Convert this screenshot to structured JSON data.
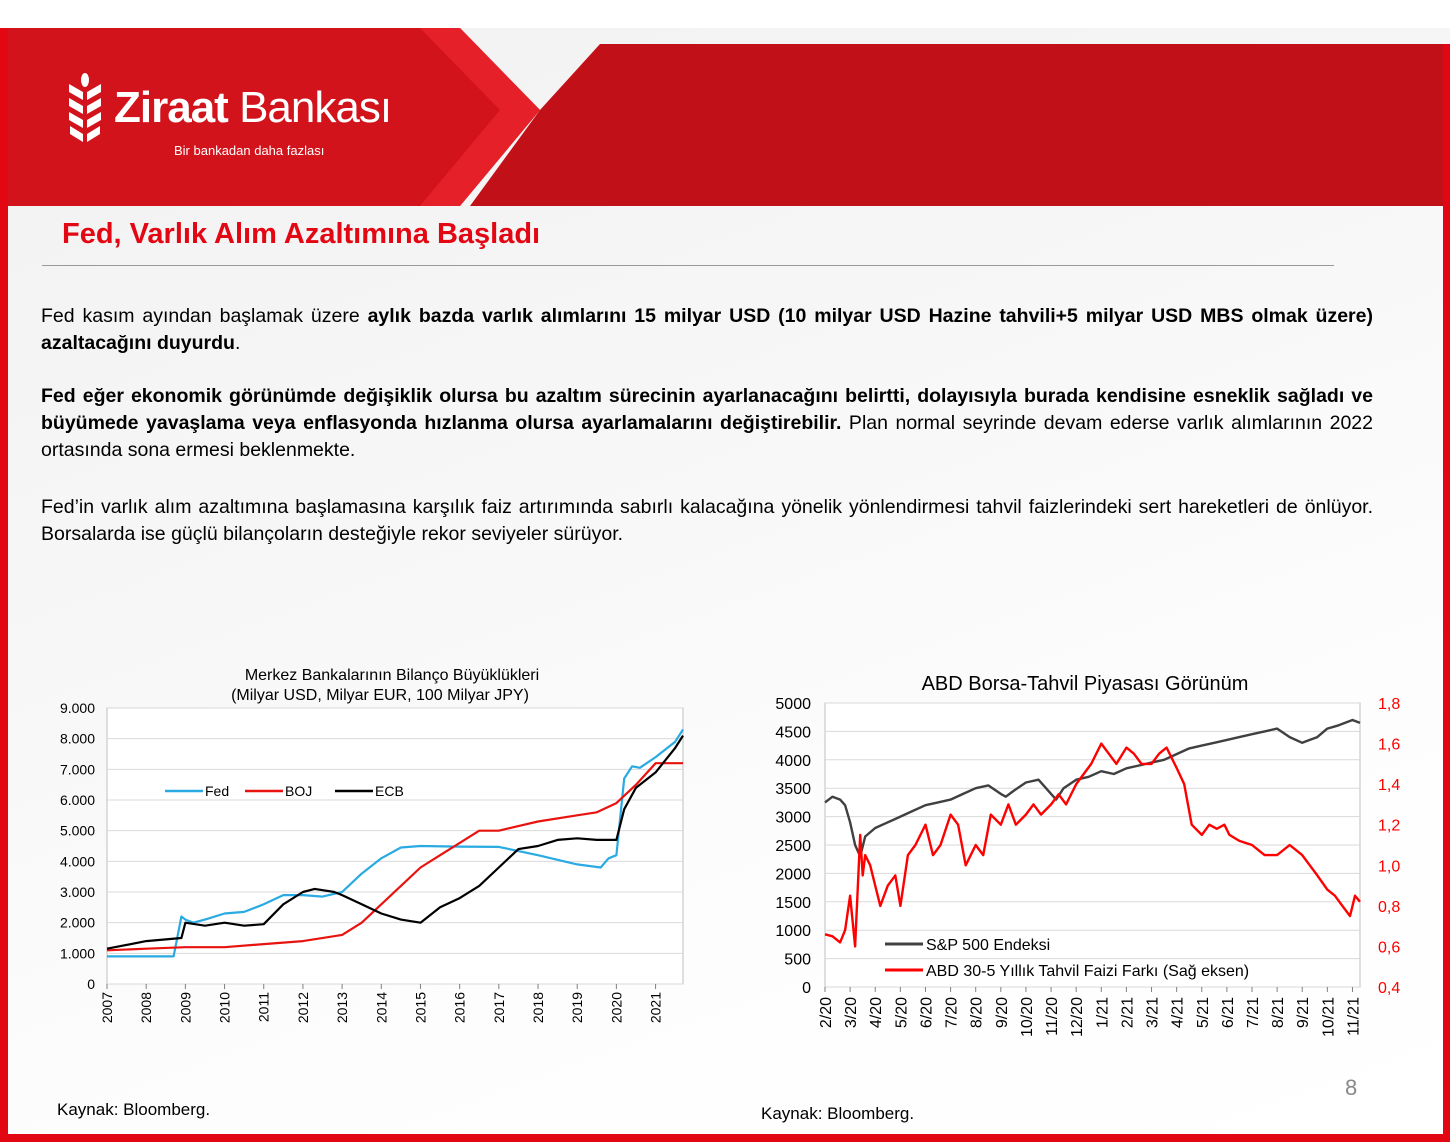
{
  "brand": {
    "name_bold": "Ziraat",
    "name_regular": "Bankası",
    "tagline": "Bir bankadan daha fazlası",
    "brand_red": "#e30613"
  },
  "slide": {
    "title": "Fed, Varlık Alım Azaltımına Başladı",
    "paragraphs": [
      {
        "pre": "Fed kasım ayından başlamak üzere ",
        "bold": "aylık bazda varlık alımlarını 15 milyar USD (10 milyar USD Hazine tahvili+5 milyar USD MBS olmak üzere) azaltacağını duyurdu",
        "post": "."
      },
      {
        "pre": "",
        "bold": "Fed eğer ekonomik görünümde değişiklik olursa bu azaltım sürecinin ayarlanacağını belirtti, dolayısıyla burada kendisine esneklik sağladı ve büyümede yavaşlama veya enflasyonda hızlanma olursa ayarlamalarını değiştirebilir.",
        "post": " Plan normal seyrinde devam ederse varlık alımlarının 2022 ortasında sona ermesi beklenmekte."
      },
      {
        "pre": "Fed’in varlık alım azaltımına başlamasına karşılık faiz artırımında sabırlı kalacağına yönelik yönlendirmesi tahvil faizlerindeki sert hareketleri de önlüyor. Borsalarda ise güçlü bilançoların desteğiyle rekor seviyeler sürüyor.",
        "bold": "",
        "post": ""
      }
    ],
    "source_left": "Kaynak: Bloomberg.",
    "source_right": "Kaynak: Bloomberg.",
    "page_number": "8"
  },
  "chart_data": [
    {
      "type": "line",
      "title": "Merkez Bankalarının Bilanço Büyüklükleri",
      "subtitle": "(Milyar USD, Milyar EUR, 100 Milyar JPY)",
      "xlabel": "",
      "ylabel": "",
      "x_ticks": [
        "2007",
        "2008",
        "2009",
        "2010",
        "2011",
        "2012",
        "2013",
        "2014",
        "2015",
        "2016",
        "2017",
        "2018",
        "2019",
        "2020",
        "2021"
      ],
      "xlim": [
        2007,
        2021.7
      ],
      "y_ticks": [
        "0",
        "1.000",
        "2.000",
        "3.000",
        "4.000",
        "5.000",
        "6.000",
        "7.000",
        "8.000",
        "9.000"
      ],
      "ylim": [
        0,
        9000
      ],
      "grid": true,
      "legend": "inside-upper-left",
      "series": [
        {
          "name": "Fed",
          "color": "#29aae2",
          "x": [
            2007,
            2008.0,
            2008.7,
            2008.9,
            2009.0,
            2009.2,
            2009.5,
            2010,
            2010.5,
            2011,
            2011.5,
            2012,
            2012.5,
            2013,
            2013.5,
            2014,
            2014.5,
            2015,
            2016,
            2017,
            2018,
            2019,
            2019.6,
            2019.8,
            2020.0,
            2020.2,
            2020.4,
            2020.6,
            2021,
            2021.5,
            2021.7
          ],
          "y": [
            900,
            900,
            900,
            2200,
            2100,
            2000,
            2100,
            2300,
            2350,
            2600,
            2900,
            2900,
            2850,
            3000,
            3600,
            4100,
            4450,
            4500,
            4480,
            4470,
            4200,
            3900,
            3800,
            4100,
            4200,
            6700,
            7100,
            7050,
            7400,
            7900,
            8300
          ]
        },
        {
          "name": "BOJ",
          "color": "#e8130f",
          "x": [
            2007,
            2008,
            2009,
            2010,
            2011,
            2012,
            2013,
            2013.5,
            2014,
            2014.5,
            2015,
            2015.5,
            2016,
            2016.5,
            2017,
            2017.5,
            2018,
            2019,
            2019.5,
            2020,
            2020.5,
            2021,
            2021.7
          ],
          "y": [
            1100,
            1150,
            1200,
            1200,
            1300,
            1400,
            1600,
            2000,
            2600,
            3200,
            3800,
            4200,
            4600,
            5000,
            5000,
            5150,
            5300,
            5500,
            5600,
            5900,
            6500,
            7200,
            7200
          ]
        },
        {
          "name": "ECB",
          "color": "#000000",
          "x": [
            2007,
            2008,
            2008.9,
            2009,
            2009.5,
            2010,
            2010.5,
            2011,
            2011.5,
            2012,
            2012.3,
            2012.8,
            2013,
            2013.5,
            2014,
            2014.5,
            2015,
            2015.5,
            2016,
            2016.5,
            2017,
            2017.5,
            2018,
            2018.5,
            2019,
            2019.5,
            2020,
            2020.2,
            2020.5,
            2021,
            2021.5,
            2021.7
          ],
          "y": [
            1150,
            1400,
            1500,
            2000,
            1900,
            2000,
            1900,
            1950,
            2600,
            3000,
            3100,
            3000,
            2900,
            2600,
            2300,
            2100,
            2000,
            2500,
            2800,
            3200,
            3800,
            4400,
            4500,
            4700,
            4750,
            4700,
            4700,
            5700,
            6400,
            6900,
            7700,
            8100
          ]
        }
      ]
    },
    {
      "type": "line",
      "title": "ABD Borsa-Tahvil Piyasası Görünüm",
      "xlabel": "",
      "ylabel": "",
      "x_ticks": [
        "2/20",
        "3/20",
        "4/20",
        "5/20",
        "6/20",
        "7/20",
        "8/20",
        "9/20",
        "10/20",
        "11/20",
        "12/20",
        "1/21",
        "2/21",
        "3/21",
        "4/21",
        "5/21",
        "6/21",
        "7/21",
        "8/21",
        "9/21",
        "10/21",
        "11/21"
      ],
      "xlim": [
        0,
        21.3
      ],
      "y_ticks": [
        "0",
        "500",
        "1000",
        "1500",
        "2000",
        "2500",
        "3000",
        "3500",
        "4000",
        "4500",
        "5000"
      ],
      "ylim": [
        0,
        5000
      ],
      "y2_ticks": [
        "0,4",
        "0,6",
        "0,8",
        "1,0",
        "1,2",
        "1,4",
        "1,6",
        "1,8"
      ],
      "y2lim": [
        0.4,
        1.8
      ],
      "secondary_color": "#ff0000",
      "grid": true,
      "legend": "inside-lower-left",
      "series": [
        {
          "name": "S&P 500 Endeksi",
          "color": "#404040",
          "axis": "left",
          "x": [
            0,
            0.3,
            0.6,
            0.8,
            1.0,
            1.2,
            1.4,
            1.6,
            2.0,
            2.5,
            3,
            3.5,
            4,
            4.5,
            5,
            5.5,
            6,
            6.5,
            7,
            7.2,
            7.5,
            8,
            8.5,
            9,
            9.2,
            9.5,
            10,
            10.5,
            11,
            11.5,
            12,
            12.5,
            13,
            13.5,
            14,
            14.5,
            15,
            15.5,
            16,
            16.5,
            17,
            17.5,
            18,
            18.5,
            19,
            19.3,
            19.6,
            20,
            20.4,
            20.7,
            21,
            21.3
          ],
          "y": [
            3250,
            3350,
            3300,
            3200,
            2900,
            2500,
            2300,
            2650,
            2800,
            2900,
            3000,
            3100,
            3200,
            3250,
            3300,
            3400,
            3500,
            3550,
            3400,
            3350,
            3450,
            3600,
            3650,
            3400,
            3300,
            3500,
            3650,
            3700,
            3800,
            3750,
            3850,
            3900,
            3950,
            4000,
            4100,
            4200,
            4250,
            4300,
            4350,
            4400,
            4450,
            4500,
            4550,
            4400,
            4300,
            4350,
            4400,
            4550,
            4600,
            4650,
            4700,
            4650
          ]
        },
        {
          "name": "ABD 30-5 Yıllık Tahvil Faizi Farkı (Sağ eksen)",
          "color": "#ff0000",
          "axis": "right",
          "x": [
            0,
            0.3,
            0.6,
            0.8,
            1.0,
            1.2,
            1.4,
            1.5,
            1.6,
            1.8,
            2.0,
            2.2,
            2.5,
            2.8,
            3.0,
            3.3,
            3.6,
            4.0,
            4.3,
            4.6,
            5.0,
            5.3,
            5.6,
            6.0,
            6.3,
            6.6,
            7.0,
            7.3,
            7.6,
            8.0,
            8.3,
            8.6,
            9.0,
            9.3,
            9.6,
            10.0,
            10.3,
            10.6,
            11.0,
            11.3,
            11.6,
            12.0,
            12.3,
            12.6,
            13.0,
            13.3,
            13.6,
            14.0,
            14.3,
            14.6,
            15.0,
            15.3,
            15.6,
            15.9,
            16.1,
            16.5,
            17.0,
            17.5,
            18.0,
            18.5,
            19.0,
            19.3,
            19.6,
            20.0,
            20.3,
            20.6,
            20.9,
            21.0,
            21.1,
            21.3
          ],
          "y": [
            0.66,
            0.65,
            0.62,
            0.68,
            0.85,
            0.6,
            1.15,
            0.95,
            1.05,
            1.0,
            0.9,
            0.8,
            0.9,
            0.95,
            0.8,
            1.05,
            1.1,
            1.2,
            1.05,
            1.1,
            1.25,
            1.2,
            1.0,
            1.1,
            1.05,
            1.25,
            1.2,
            1.3,
            1.2,
            1.25,
            1.3,
            1.25,
            1.3,
            1.35,
            1.3,
            1.4,
            1.45,
            1.5,
            1.6,
            1.55,
            1.5,
            1.58,
            1.55,
            1.5,
            1.5,
            1.55,
            1.58,
            1.48,
            1.4,
            1.2,
            1.15,
            1.2,
            1.18,
            1.2,
            1.15,
            1.12,
            1.1,
            1.05,
            1.05,
            1.1,
            1.05,
            1.0,
            0.95,
            0.88,
            0.85,
            0.8,
            0.75,
            0.8,
            0.85,
            0.82
          ]
        }
      ]
    }
  ]
}
